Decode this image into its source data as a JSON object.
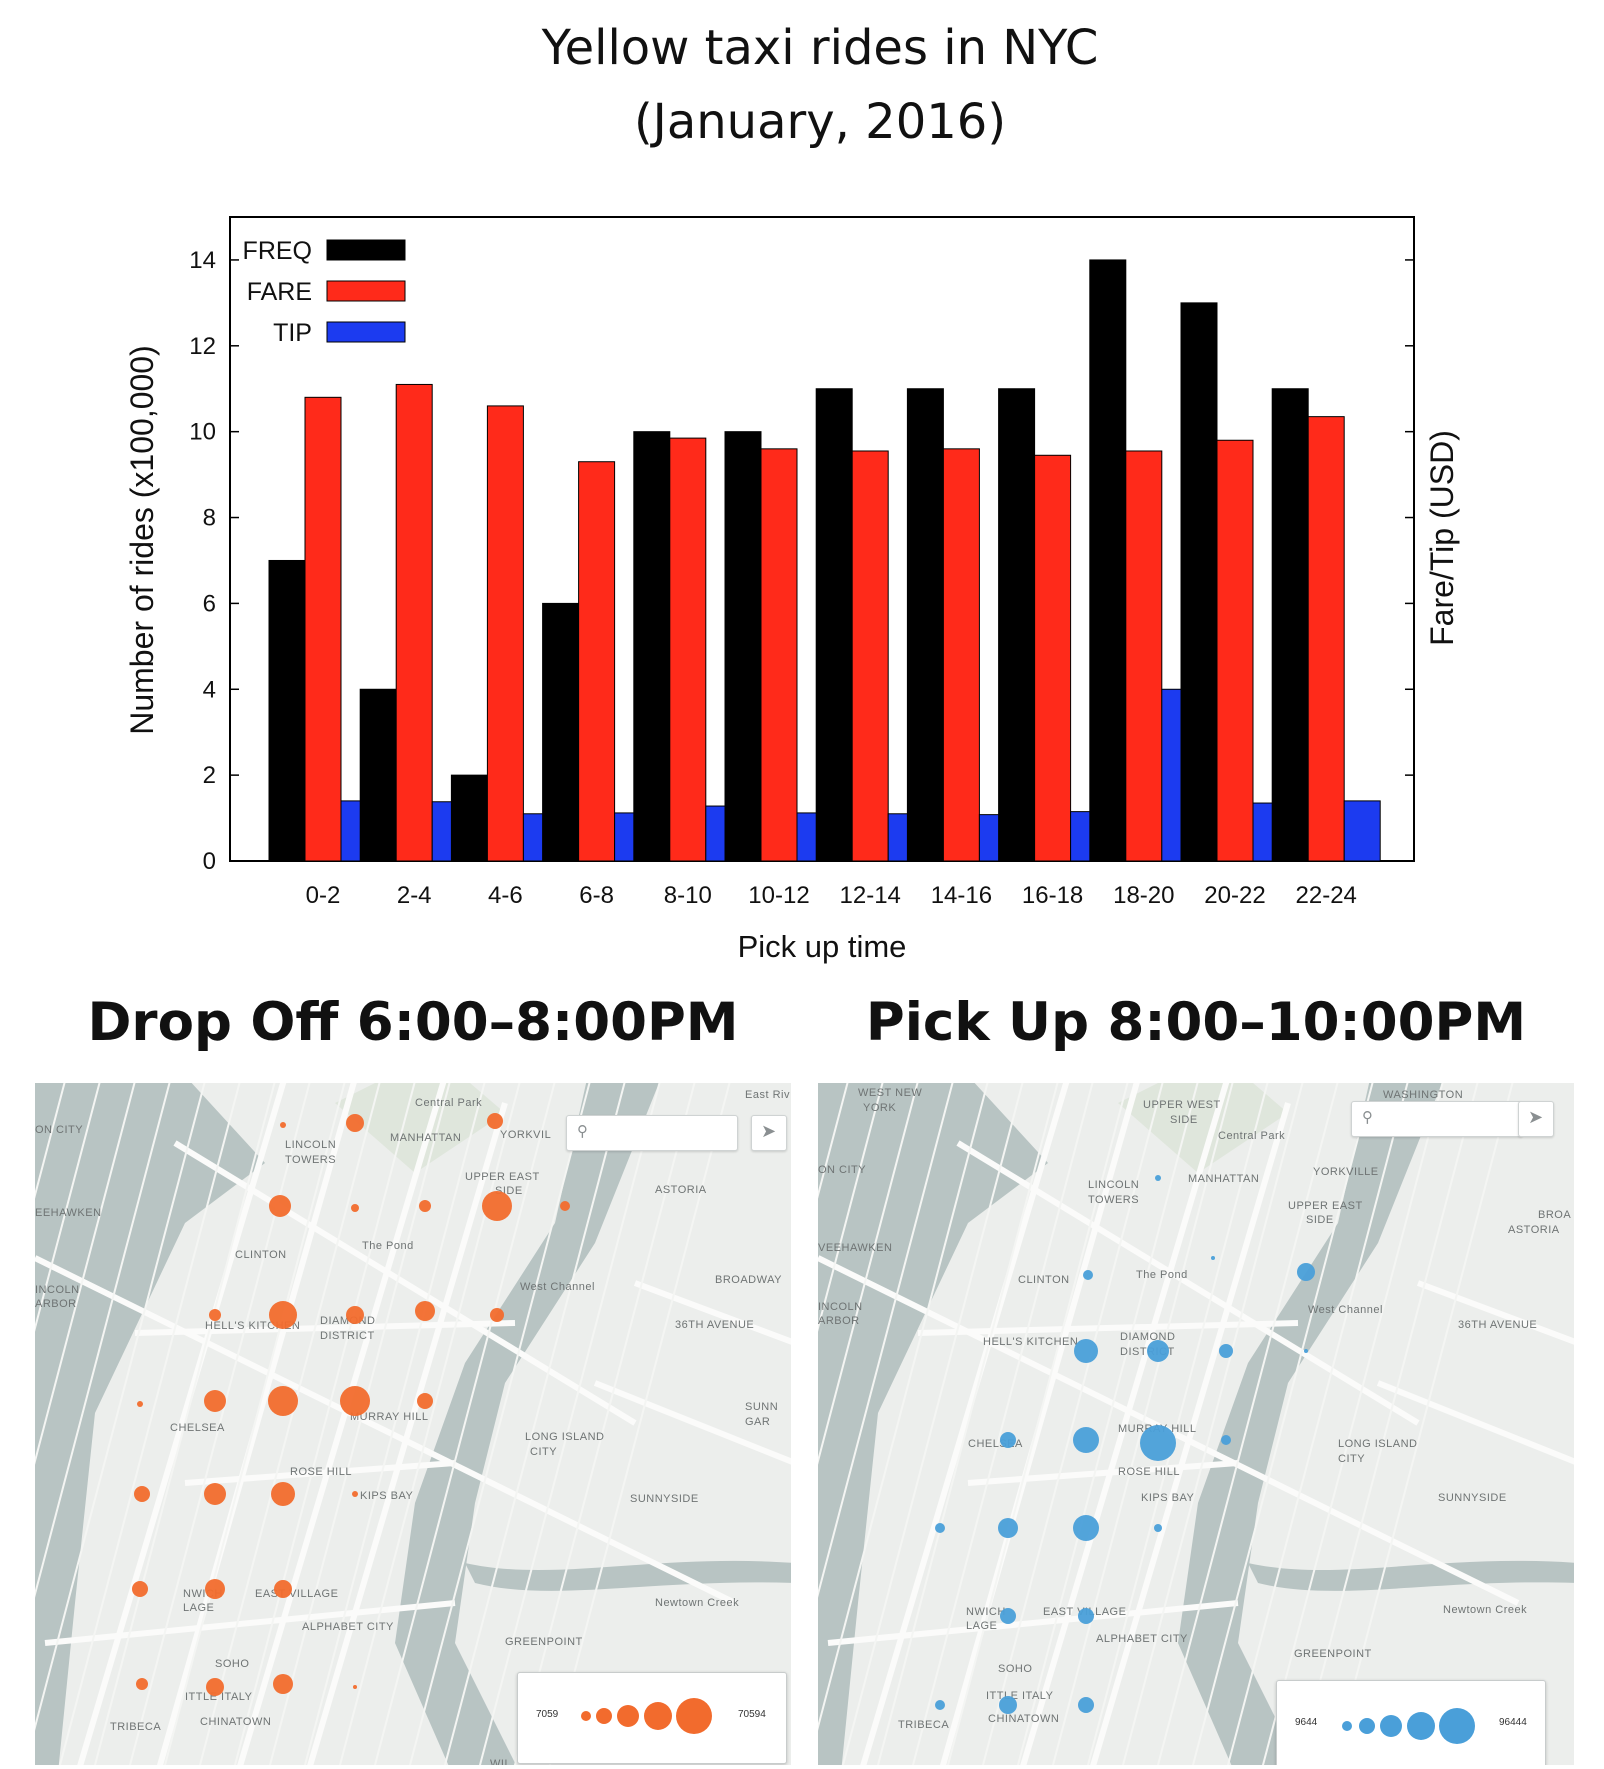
{
  "title_line1": "Yellow taxi rides in NYC",
  "title_line2": "(January, 2016)",
  "chart_data": {
    "type": "bar",
    "categories": [
      "0-2",
      "2-4",
      "4-6",
      "6-8",
      "8-10",
      "10-12",
      "12-14",
      "14-16",
      "16-18",
      "18-20",
      "20-22",
      "22-24"
    ],
    "series": [
      {
        "name": "FREQ",
        "color": "#000000",
        "values": [
          7,
          4,
          2,
          6,
          10,
          10,
          11,
          11,
          11,
          14,
          13,
          11
        ]
      },
      {
        "name": "FARE",
        "color": "#ff2a1a",
        "values": [
          10.8,
          11.1,
          10.6,
          9.3,
          9.85,
          9.6,
          9.55,
          9.6,
          9.45,
          9.55,
          9.8,
          10.35
        ]
      },
      {
        "name": "TIP",
        "color": "#1c3bf0",
        "values": [
          1.4,
          1.38,
          1.1,
          1.12,
          1.28,
          1.12,
          1.1,
          1.08,
          1.15,
          4.0,
          1.35,
          1.4
        ]
      }
    ],
    "xlabel": "Pick up time",
    "ylabel": "Number of rides (x100,000)",
    "y2label": "Fare/Tip (USD)",
    "ylim": [
      0,
      15
    ],
    "yticks": [
      0,
      2,
      4,
      6,
      8,
      10,
      12,
      14
    ],
    "legend_position": "top-left",
    "grid": false
  },
  "maps": {
    "dropoff": {
      "title": "Drop Off 6:00–8:00PM",
      "color": "#f26b2d",
      "legend_min": "7059",
      "legend_max": "70594",
      "labels": [
        "ON CITY",
        "LINCOLN",
        "TOWERS",
        "MANHATTAN",
        "YORKVIL",
        "UPPER EAST",
        "SIDE",
        "ASTORIA",
        "EEHAWKEN",
        "CLINTON",
        "The Pond",
        "INCOLN",
        "ARBOR",
        "West Channel",
        "HELL'S KITCHEN",
        "DIAMOND",
        "DISTRICT",
        "CHELSEA",
        "MURRAY HILL",
        "LONG ISLAND",
        "CITY",
        "SUNN",
        "GAR",
        "ROSE HILL",
        "KIPS BAY",
        "SUNNYSIDE",
        "NWICH",
        "LAGE",
        "EAST VILLAGE",
        "Newtown Creek",
        "ALPHABET CITY",
        "GREENPOINT",
        "SOHO",
        "ITTLE ITALY",
        "CHINATOWN",
        "TRIBECA",
        "WIL",
        "Central Park",
        "East Riv",
        "BROADWAY",
        "36TH AVENUE"
      ]
    },
    "pickup": {
      "title": "Pick Up 8:00–10:00PM",
      "color": "#4a9fd9",
      "legend_min": "9644",
      "legend_max": "96444",
      "labels": [
        "WEST NEW",
        "YORK",
        "UPPER WEST",
        "SIDE",
        "WASHINGTON",
        "ON CITY",
        "LINCOLN",
        "TOWERS",
        "MANHATTAN",
        "YORKVILLE",
        "UPPER EAST",
        "SIDE",
        "ASTORIA",
        "VEEHAWKEN",
        "CLINTON",
        "The Pond",
        "INCOLN",
        "ARBOR",
        "West Channel",
        "HELL'S KITCHEN",
        "DIAMOND",
        "DISTRICT",
        "CHELSEA",
        "MURRAY HILL",
        "LONG ISLAND",
        "CITY",
        "ROSE HILL",
        "KIPS BAY",
        "SUNNYSIDE",
        "NWICH",
        "LAGE",
        "EAST VILLAGE",
        "Newtown Creek",
        "ALPHABET CITY",
        "GREENPOINT",
        "SOHO",
        "ITTLE ITALY",
        "CHINATOWN",
        "TRIBECA",
        "Central Park",
        "BROA",
        "36TH AVENUE"
      ]
    }
  },
  "icons": {
    "search": "search-icon",
    "locate": "locate-arrow-icon"
  }
}
